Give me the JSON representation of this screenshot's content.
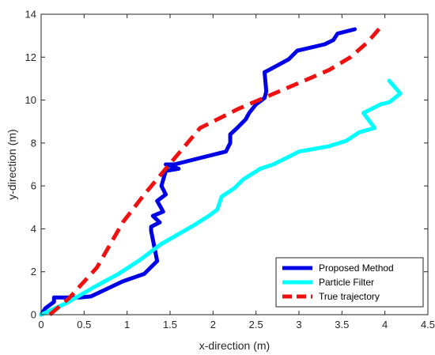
{
  "chart_data": {
    "type": "line",
    "xlabel": "x-direction (m)",
    "ylabel": "y-direction (m)",
    "xlim": [
      0,
      4.5
    ],
    "ylim": [
      0,
      14
    ],
    "xticks": [
      "0",
      "0.5",
      "1",
      "1.5",
      "2",
      "2.5",
      "3",
      "3.5",
      "4",
      "4.5"
    ],
    "yticks": [
      "0",
      "2",
      "4",
      "6",
      "8",
      "10",
      "12",
      "14"
    ],
    "grid": false,
    "legend_position": "bottom-right",
    "series": [
      {
        "name": "Proposed Method",
        "color": "#0000e6",
        "style": "solid",
        "x": [
          0.0,
          0.05,
          0.15,
          0.15,
          0.45,
          0.45,
          0.58,
          0.95,
          1.2,
          1.35,
          1.28,
          1.28,
          1.38,
          1.3,
          1.42,
          1.35,
          1.45,
          1.4,
          1.45,
          1.6,
          1.45,
          1.55,
          2.15,
          2.2,
          2.2,
          2.28,
          2.38,
          2.42,
          2.5,
          2.6,
          2.62,
          2.6,
          2.65,
          2.88,
          2.98,
          3.3,
          3.4,
          3.45,
          3.65
        ],
        "y": [
          0.0,
          0.3,
          0.6,
          0.8,
          0.8,
          0.8,
          0.85,
          1.55,
          1.9,
          2.5,
          3.9,
          4.1,
          4.3,
          4.6,
          4.8,
          5.3,
          5.6,
          6.0,
          6.7,
          6.8,
          7.0,
          7.0,
          7.6,
          8.0,
          8.4,
          8.7,
          9.1,
          9.4,
          9.8,
          10.1,
          10.4,
          11.3,
          11.4,
          11.9,
          12.3,
          12.6,
          12.8,
          13.1,
          13.3
        ]
      },
      {
        "name": "Particle Filter",
        "color": "#00ffff",
        "style": "solid",
        "x": [
          0.0,
          0.3,
          0.6,
          0.9,
          1.15,
          1.4,
          1.75,
          1.95,
          2.05,
          2.1,
          2.25,
          2.35,
          2.55,
          2.7,
          2.8,
          3.0,
          3.35,
          3.55,
          3.7,
          3.88,
          3.75,
          3.85,
          3.95,
          4.05,
          4.18,
          4.05
        ],
        "y": [
          0.0,
          0.55,
          1.25,
          1.9,
          2.55,
          3.3,
          4.1,
          4.6,
          4.9,
          5.5,
          5.9,
          6.3,
          6.8,
          7.0,
          7.2,
          7.6,
          7.85,
          8.1,
          8.5,
          8.7,
          9.4,
          9.6,
          9.8,
          9.9,
          10.3,
          10.9
        ]
      },
      {
        "name": "True trajectory",
        "color": "#ee1111",
        "style": "dashed",
        "x": [
          0.1,
          0.32,
          0.65,
          0.95,
          1.2,
          1.45,
          1.85,
          2.3,
          2.65,
          3.0,
          3.35,
          3.6,
          3.8,
          3.95
        ],
        "y": [
          0.0,
          0.75,
          2.2,
          4.3,
          5.6,
          6.8,
          8.7,
          9.6,
          10.2,
          10.8,
          11.4,
          12.0,
          12.7,
          13.4
        ]
      }
    ]
  }
}
